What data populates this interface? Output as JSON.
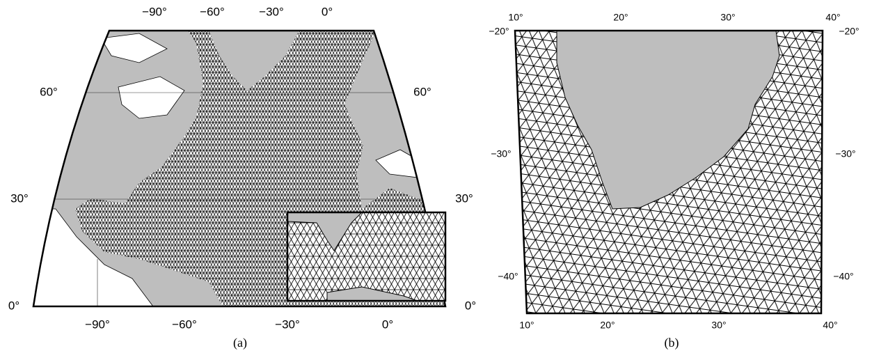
{
  "panels": [
    {
      "caption": "(a)",
      "top_ticks": [
        "−90°",
        "−60°",
        "−30°",
        "0°"
      ],
      "bottom_ticks": [
        "−90°",
        "−60°",
        "−30°",
        "0°"
      ],
      "left_ticks": [
        "60°",
        "30°",
        "0°"
      ],
      "right_ticks": [
        "60°",
        "30°",
        "0°"
      ]
    },
    {
      "caption": "(b)",
      "top_ticks": [
        "10°",
        "20°",
        "30°",
        "40°"
      ],
      "bottom_ticks": [
        "10°",
        "20°",
        "30°",
        "40°"
      ],
      "left_ticks": [
        "−20°",
        "−30°",
        "−40°"
      ],
      "right_ticks": [
        "−20°",
        "−30°",
        "−40°"
      ]
    }
  ]
}
